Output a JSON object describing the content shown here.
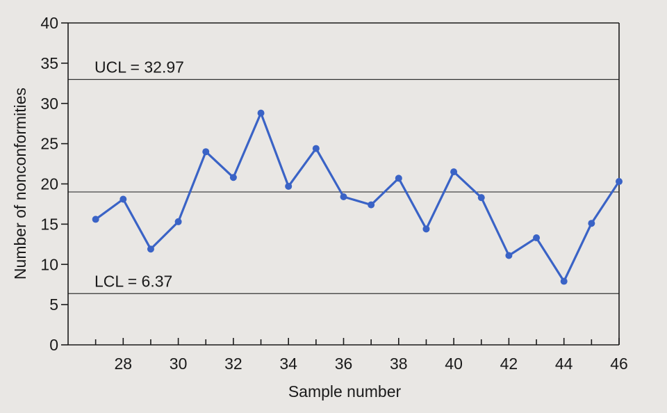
{
  "chart_data": {
    "type": "line",
    "xlabel": "Sample number",
    "ylabel": "Number of nonconformities",
    "xlim": [
      26,
      46
    ],
    "ylim": [
      0,
      40
    ],
    "x_ticks": [
      28,
      30,
      32,
      34,
      36,
      38,
      40,
      42,
      44,
      46
    ],
    "y_ticks": [
      0,
      5,
      10,
      15,
      20,
      25,
      30,
      35,
      40
    ],
    "grid": false,
    "series": [
      {
        "x": [
          27,
          28,
          29,
          30,
          31,
          32,
          33,
          34,
          35,
          36,
          37,
          38,
          39,
          40,
          41,
          42,
          43,
          44,
          45,
          46
        ],
        "y": [
          15.6,
          18.1,
          11.9,
          15.3,
          24.0,
          20.8,
          28.8,
          19.7,
          24.4,
          18.4,
          17.4,
          20.7,
          14.4,
          21.5,
          18.3,
          11.1,
          13.3,
          7.9,
          15.1,
          20.3
        ]
      }
    ],
    "reference_lines": [
      {
        "label": "UCL = 32.97",
        "value": 32.97
      },
      {
        "value": 19.0
      },
      {
        "label": "LCL = 6.37",
        "value": 6.37
      }
    ],
    "colors": {
      "series": "#3a63c6",
      "limits": "#333333",
      "axis": "#1a1a1a"
    }
  }
}
